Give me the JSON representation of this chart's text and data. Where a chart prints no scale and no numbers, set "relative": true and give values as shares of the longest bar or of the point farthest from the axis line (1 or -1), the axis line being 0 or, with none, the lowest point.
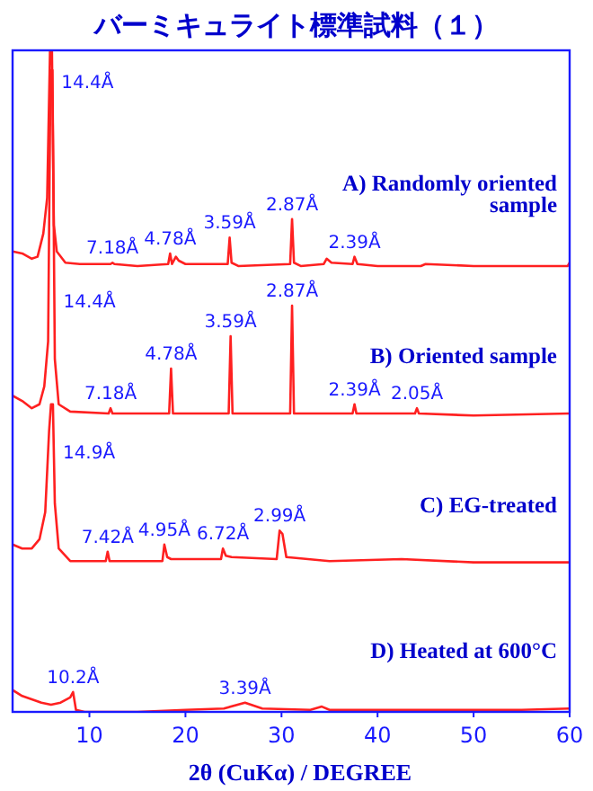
{
  "chart_data": {
    "type": "line",
    "title": "バーミキュライト標準試料（１）",
    "xlabel": "2θ (CuKα) / DEGREE",
    "relative": true,
    "xlim": [
      2,
      60
    ],
    "xticks": [
      10,
      20,
      30,
      40,
      50,
      60
    ],
    "series": [
      {
        "name": "A) Randomly oriented sample",
        "color": "#ff2020",
        "x": [
          2,
          3,
          4,
          4.6,
          5.2,
          5.6,
          5.9,
          6.1,
          6.3,
          6.6,
          7.5,
          9,
          12.2,
          12.4,
          12.6,
          15,
          18.2,
          18.4,
          18.6,
          19,
          19.3,
          20,
          24.4,
          24.6,
          24.8,
          25.5,
          30.9,
          31.1,
          31.3,
          32,
          34.4,
          34.7,
          35.2,
          37.4,
          37.6,
          37.9,
          40,
          44.5,
          45,
          50,
          55,
          59.8,
          60
        ],
        "values": [
          0.696,
          0.693,
          0.685,
          0.688,
          0.723,
          0.777,
          1.0,
          1.0,
          0.736,
          0.696,
          0.679,
          0.677,
          0.677,
          0.679,
          0.677,
          0.674,
          0.677,
          0.693,
          0.677,
          0.688,
          0.682,
          0.677,
          0.677,
          0.717,
          0.679,
          0.674,
          0.677,
          0.745,
          0.679,
          0.674,
          0.677,
          0.685,
          0.679,
          0.677,
          0.688,
          0.677,
          0.674,
          0.674,
          0.677,
          0.674,
          0.674,
          0.674,
          0.679
        ]
      },
      {
        "name": "B) Oriented sample",
        "color": "#ff2020",
        "x": [
          2,
          3,
          4,
          4.8,
          5.3,
          5.7,
          5.95,
          6.15,
          6.4,
          6.8,
          8,
          12,
          12.2,
          12.4,
          18.3,
          18.5,
          18.7,
          24.5,
          24.7,
          24.9,
          30.9,
          31.1,
          31.3,
          37.4,
          37.6,
          37.8,
          43.9,
          44.1,
          44.3,
          50,
          60
        ],
        "values": [
          0.478,
          0.47,
          0.459,
          0.465,
          0.492,
          0.56,
          0.97,
          0.97,
          0.533,
          0.465,
          0.454,
          0.451,
          0.459,
          0.451,
          0.451,
          0.519,
          0.451,
          0.451,
          0.568,
          0.451,
          0.451,
          0.614,
          0.451,
          0.451,
          0.465,
          0.451,
          0.451,
          0.459,
          0.451,
          0.448,
          0.451
        ]
      },
      {
        "name": "C) EG-treated",
        "color": "#ff2020",
        "x": [
          2,
          3,
          4,
          4.8,
          5.4,
          5.8,
          6.0,
          6.2,
          6.4,
          6.8,
          8,
          11.7,
          11.9,
          12.1,
          17.6,
          17.8,
          18.1,
          18.5,
          23.7,
          23.9,
          24.2,
          24.8,
          29.5,
          29.8,
          30.1,
          30.5,
          35,
          42.5,
          50,
          60
        ],
        "values": [
          0.253,
          0.247,
          0.247,
          0.261,
          0.302,
          0.424,
          0.465,
          0.465,
          0.315,
          0.247,
          0.228,
          0.228,
          0.242,
          0.228,
          0.228,
          0.253,
          0.234,
          0.231,
          0.231,
          0.247,
          0.236,
          0.234,
          0.231,
          0.274,
          0.269,
          0.234,
          0.228,
          0.231,
          0.226,
          0.226
        ]
      },
      {
        "name": "D) Heated at 600°C",
        "color": "#ff2020",
        "x": [
          2,
          3,
          4,
          5,
          6,
          7,
          8,
          8.3,
          8.6,
          9.5,
          15,
          20,
          24,
          26.2,
          28,
          33,
          34.2,
          35,
          45,
          55,
          60
        ],
        "values": [
          0.033,
          0.024,
          0.019,
          0.014,
          0.011,
          0.014,
          0.022,
          0.03,
          0.003,
          0,
          0,
          0.003,
          0.005,
          0.014,
          0.005,
          0.003,
          0.008,
          0.003,
          0.003,
          0.003,
          0.005
        ]
      }
    ],
    "annotations": [
      {
        "text": "14.4Å",
        "x": 6.135,
        "y": 0.954
      },
      {
        "text": "7.18Å",
        "x": 12.4,
        "y": 0.679
      },
      {
        "text": "4.78Å",
        "x": 18.4,
        "y": 0.693
      },
      {
        "text": "3.59Å",
        "x": 24.6,
        "y": 0.717
      },
      {
        "text": "2.87Å",
        "x": 31.1,
        "y": 0.745
      },
      {
        "text": "2.39Å",
        "x": 37.6,
        "y": 0.688
      },
      {
        "text": "14.4Å",
        "x": 6.35,
        "y": 0.622
      },
      {
        "text": "7.18Å",
        "x": 12.2,
        "y": 0.459
      },
      {
        "text": "4.78Å",
        "x": 18.5,
        "y": 0.519
      },
      {
        "text": "3.59Å",
        "x": 24.7,
        "y": 0.568
      },
      {
        "text": "2.87Å",
        "x": 31.1,
        "y": 0.614
      },
      {
        "text": "2.39Å",
        "x": 37.6,
        "y": 0.465
      },
      {
        "text": "2.05Å",
        "x": 44.1,
        "y": 0.459
      },
      {
        "text": "14.9Å",
        "x": 6.295,
        "y": 0.394
      },
      {
        "text": "7.42Å",
        "x": 11.9,
        "y": 0.242
      },
      {
        "text": "4.95Å",
        "x": 17.8,
        "y": 0.253
      },
      {
        "text": "6.72Å",
        "x": 23.9,
        "y": 0.247
      },
      {
        "text": "2.99Å",
        "x": 29.8,
        "y": 0.274
      },
      {
        "text": "10.2Å",
        "x": 8.3,
        "y": 0.03
      },
      {
        "text": "3.39Å",
        "x": 26.2,
        "y": 0.014
      }
    ]
  }
}
